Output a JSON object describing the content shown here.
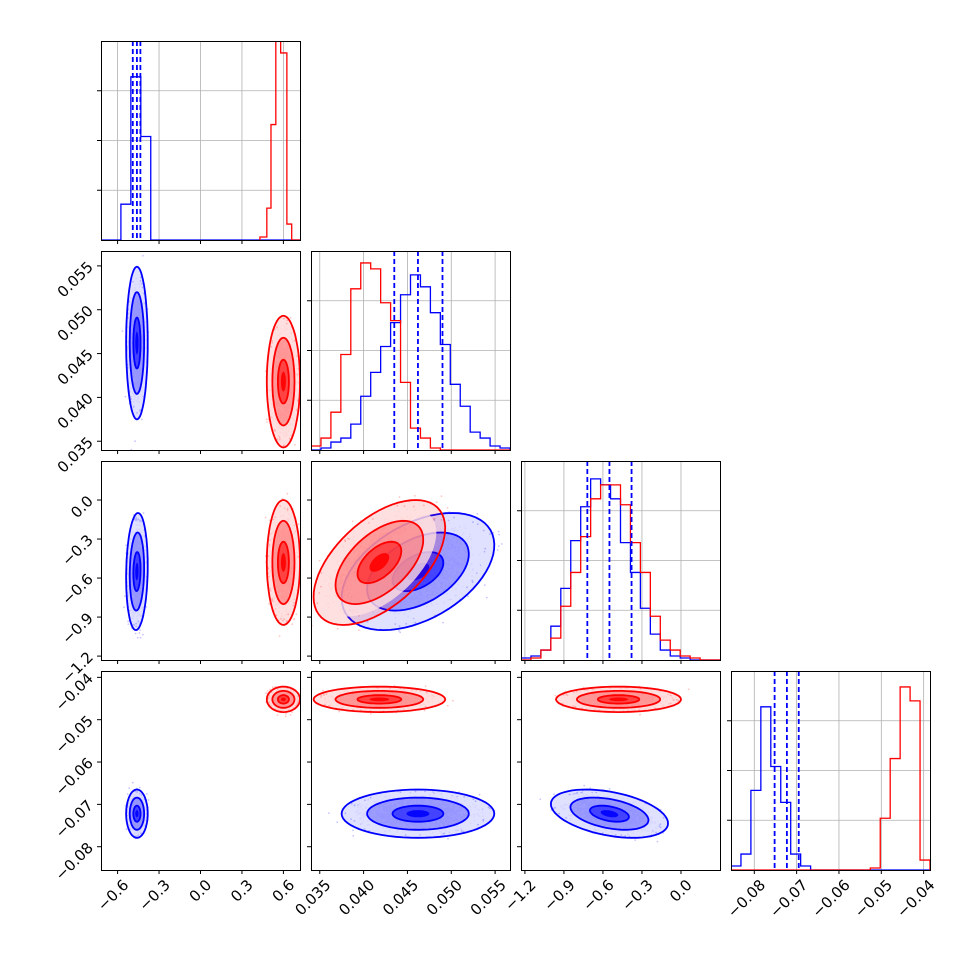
{
  "chart_data": {
    "type": "corner",
    "parameters": [
      {
        "id": "p0",
        "range": [
          -0.72,
          0.72
        ],
        "ticks": [
          -0.6,
          -0.3,
          0.0,
          0.3,
          0.6
        ],
        "tick_labels": [
          "−0.6",
          "−0.3",
          "0.0",
          "0.3",
          "0.6"
        ]
      },
      {
        "id": "p1",
        "range": [
          0.034,
          0.0567
        ],
        "ticks": [
          0.035,
          0.04,
          0.045,
          0.05,
          0.055
        ],
        "tick_labels": [
          "0.035",
          "0.040",
          "0.045",
          "0.050",
          "0.055"
        ]
      },
      {
        "id": "p2",
        "range": [
          -1.23,
          0.3
        ],
        "ticks": [
          -1.2,
          -0.9,
          -0.6,
          -0.3,
          0.0
        ],
        "tick_labels": [
          "−1.2",
          "−0.9",
          "−0.6",
          "−0.3",
          "0.0"
        ]
      },
      {
        "id": "p3",
        "range": [
          -0.0855,
          -0.0385
        ],
        "ticks": [
          -0.08,
          -0.07,
          -0.06,
          -0.05,
          -0.04
        ],
        "tick_labels": [
          "−0.08",
          "−0.07",
          "−0.06",
          "−0.05",
          "−0.04"
        ]
      }
    ],
    "series": [
      {
        "color": "#0000ff",
        "mean": [
          -0.46,
          0.0462,
          -0.55,
          -0.0722
        ],
        "std": [
          0.026,
          0.0029,
          0.15,
          0.0019
        ],
        "corr": [
          [
            0,
            2,
            0.1
          ],
          [
            1,
            2,
            0.45
          ],
          [
            2,
            3,
            -0.4
          ],
          [
            1,
            3,
            0.0
          ]
        ],
        "quantiles": [
          [
            -0.49,
            -0.46,
            -0.435
          ],
          [
            0.0435,
            0.0462,
            0.049
          ],
          [
            -0.72,
            -0.55,
            -0.38
          ],
          [
            -0.0752,
            -0.0723,
            -0.0695
          ]
        ]
      },
      {
        "color": "#ff0000",
        "mean": [
          0.6,
          0.0418,
          -0.48,
          -0.0452
        ],
        "std": [
          0.04,
          0.0025,
          0.16,
          0.001
        ],
        "corr": [
          [
            1,
            2,
            0.55
          ],
          [
            0,
            2,
            0.0
          ],
          [
            1,
            3,
            0.0
          ],
          [
            2,
            3,
            0.0
          ]
        ],
        "quantiles": []
      }
    ],
    "histograms": [
      {
        "param": 0,
        "edges_range": [
          -0.72,
          0.72
        ],
        "bins": 20,
        "blue": [
          0,
          0,
          0.18,
          0.82,
          0.52,
          0,
          0,
          0,
          0,
          0,
          0,
          0,
          0,
          0,
          0,
          0,
          0,
          0,
          0,
          0
        ],
        "red": [
          0,
          0,
          0,
          0,
          0,
          0,
          0,
          0,
          0,
          0,
          0,
          0,
          0,
          0,
          0,
          0,
          0,
          0,
          0,
          0
        ],
        "red_fine": [
          [
            0.43,
            0.48,
            0.015
          ],
          [
            0.48,
            0.51,
            0.16
          ],
          [
            0.51,
            0.545,
            0.58
          ],
          [
            0.545,
            0.58,
            1.0
          ],
          [
            0.58,
            0.625,
            0.94
          ],
          [
            0.625,
            0.66,
            0.08
          ],
          [
            0.66,
            0.72,
            0.0
          ]
        ]
      },
      {
        "param": 1,
        "bins": 20,
        "blue": [
          0.0,
          0.01,
          0.04,
          0.06,
          0.13,
          0.27,
          0.39,
          0.52,
          0.64,
          0.78,
          0.88,
          0.82,
          0.69,
          0.53,
          0.33,
          0.22,
          0.09,
          0.06,
          0.02,
          0.01
        ],
        "red": [
          0.02,
          0.06,
          0.19,
          0.48,
          0.81,
          0.94,
          0.91,
          0.74,
          0.65,
          0.34,
          0.11,
          0.06,
          0.01,
          0,
          0,
          0,
          0,
          0,
          0,
          0
        ]
      },
      {
        "param": 2,
        "bins": 20,
        "blue": [
          0.01,
          0.02,
          0.05,
          0.17,
          0.36,
          0.6,
          0.77,
          0.91,
          0.88,
          0.81,
          0.59,
          0.44,
          0.26,
          0.13,
          0.05,
          0.02,
          0.01,
          0,
          0,
          0
        ],
        "red": [
          0.0,
          0.01,
          0.05,
          0.11,
          0.27,
          0.44,
          0.62,
          0.81,
          0.88,
          0.88,
          0.78,
          0.59,
          0.44,
          0.22,
          0.1,
          0.05,
          0.02,
          0.01,
          0,
          0
        ]
      },
      {
        "param": 3,
        "bins": 20,
        "blue": [
          0.02,
          0.08,
          0.4,
          0.82,
          0.52,
          0.34,
          0.08,
          0.02,
          0,
          0,
          0,
          0,
          0,
          0,
          0,
          0,
          0,
          0,
          0,
          0
        ],
        "red": [
          0,
          0,
          0,
          0,
          0,
          0,
          0,
          0,
          0,
          0,
          0,
          0,
          0,
          0.0,
          0.01,
          0.26,
          0.56,
          0.92,
          0.85,
          0.05
        ]
      }
    ],
    "grid": true
  }
}
